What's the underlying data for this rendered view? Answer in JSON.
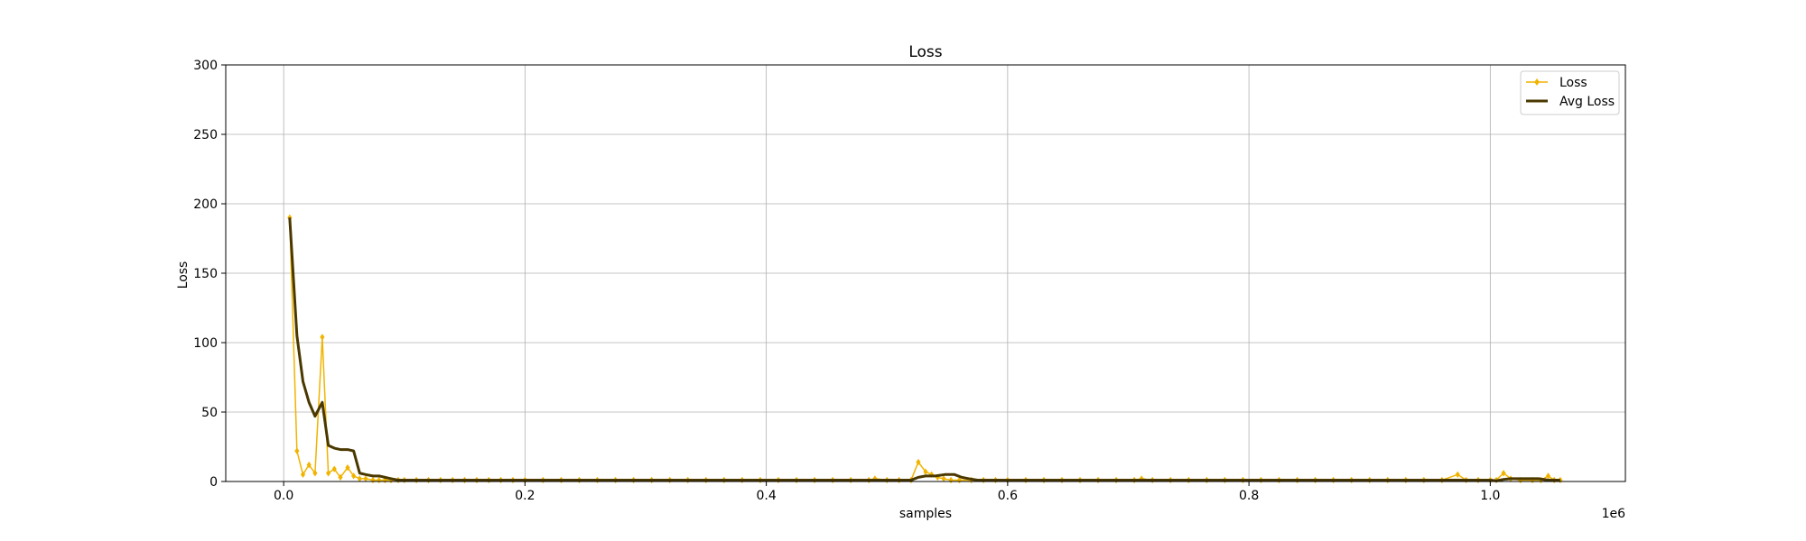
{
  "chart_data": {
    "type": "line",
    "title": "Loss",
    "xlabel": "samples",
    "ylabel": "Loss",
    "x_offset_label": "1e6",
    "xlim": [
      -48000,
      1112000
    ],
    "ylim": [
      0,
      300
    ],
    "xticks": [
      0.0,
      0.2,
      0.4,
      0.6,
      0.8,
      1.0
    ],
    "xtick_labels": [
      "0.0",
      "0.2",
      "0.4",
      "0.6",
      "0.8",
      "1.0"
    ],
    "yticks": [
      0,
      50,
      100,
      150,
      200,
      250,
      300
    ],
    "ytick_labels": [
      "0",
      "50",
      "100",
      "150",
      "200",
      "250",
      "300"
    ],
    "grid": true,
    "legend_position": "top-right",
    "colors": {
      "loss": "#f0b400",
      "avg_loss": "#4a3800"
    },
    "series": [
      {
        "name": "Loss",
        "marker": "diamond",
        "x": [
          5000,
          11000,
          16000,
          21000,
          26000,
          32000,
          37000,
          42000,
          47000,
          53000,
          58000,
          63000,
          68000,
          74000,
          79000,
          84000,
          89000,
          95000,
          100000,
          110000,
          120000,
          130000,
          140000,
          150000,
          160000,
          170000,
          180000,
          190000,
          200000,
          215000,
          230000,
          245000,
          260000,
          275000,
          290000,
          305000,
          320000,
          335000,
          350000,
          365000,
          380000,
          395000,
          410000,
          425000,
          440000,
          455000,
          470000,
          485000,
          490000,
          500000,
          510000,
          520000,
          526000,
          532000,
          537000,
          542000,
          547000,
          553000,
          560000,
          570000,
          580000,
          590000,
          600000,
          615000,
          630000,
          645000,
          660000,
          675000,
          690000,
          705000,
          711000,
          720000,
          735000,
          750000,
          765000,
          780000,
          795000,
          810000,
          825000,
          840000,
          855000,
          870000,
          885000,
          900000,
          915000,
          930000,
          945000,
          960000,
          973000,
          980000,
          990000,
          1000000,
          1005000,
          1011000,
          1017000,
          1025000,
          1035000,
          1042000,
          1048000,
          1053000,
          1058000
        ],
        "y": [
          190,
          22,
          5,
          12,
          6,
          104,
          6,
          9,
          3,
          10,
          4,
          2,
          2,
          1,
          1,
          1,
          1,
          1,
          1,
          1,
          1,
          1,
          1,
          1,
          1,
          1,
          1,
          1,
          1,
          1,
          1,
          1,
          1,
          1,
          1,
          1,
          1,
          1,
          1,
          1,
          1,
          1,
          1,
          1,
          1,
          1,
          1,
          1,
          2,
          1,
          1,
          1,
          14,
          7,
          5,
          3,
          2,
          1,
          1,
          1,
          1,
          1,
          1,
          1,
          1,
          1,
          1,
          1,
          1,
          1,
          2,
          1,
          1,
          1,
          1,
          1,
          1,
          1,
          1,
          1,
          1,
          1,
          1,
          1,
          1,
          1,
          1,
          1,
          5,
          1,
          1,
          1,
          1,
          6,
          2,
          1,
          1,
          1,
          4,
          1,
          1
        ]
      },
      {
        "name": "Avg Loss",
        "marker": "none",
        "x": [
          5000,
          11000,
          16000,
          21000,
          26000,
          32000,
          37000,
          42000,
          47000,
          53000,
          58000,
          63000,
          68000,
          74000,
          79000,
          84000,
          89000,
          95000,
          100000,
          150000,
          200000,
          300000,
          400000,
          500000,
          520000,
          526000,
          532000,
          540000,
          548000,
          556000,
          562000,
          568000,
          575000,
          590000,
          600000,
          700000,
          800000,
          900000,
          960000,
          973000,
          990000,
          1000000,
          1005000,
          1011000,
          1017000,
          1030000,
          1040000,
          1048000,
          1058000
        ],
        "y": [
          190,
          105,
          72,
          57,
          47,
          57,
          26,
          24,
          23,
          23,
          22,
          6,
          5,
          4,
          4,
          3,
          2,
          1,
          1,
          1,
          1,
          1,
          1,
          1,
          1,
          3,
          4,
          4,
          5,
          5,
          3,
          2,
          1,
          1,
          1,
          1,
          1,
          1,
          1,
          1,
          1,
          1,
          0.5,
          1.5,
          2,
          2,
          2,
          1,
          1
        ]
      }
    ]
  }
}
